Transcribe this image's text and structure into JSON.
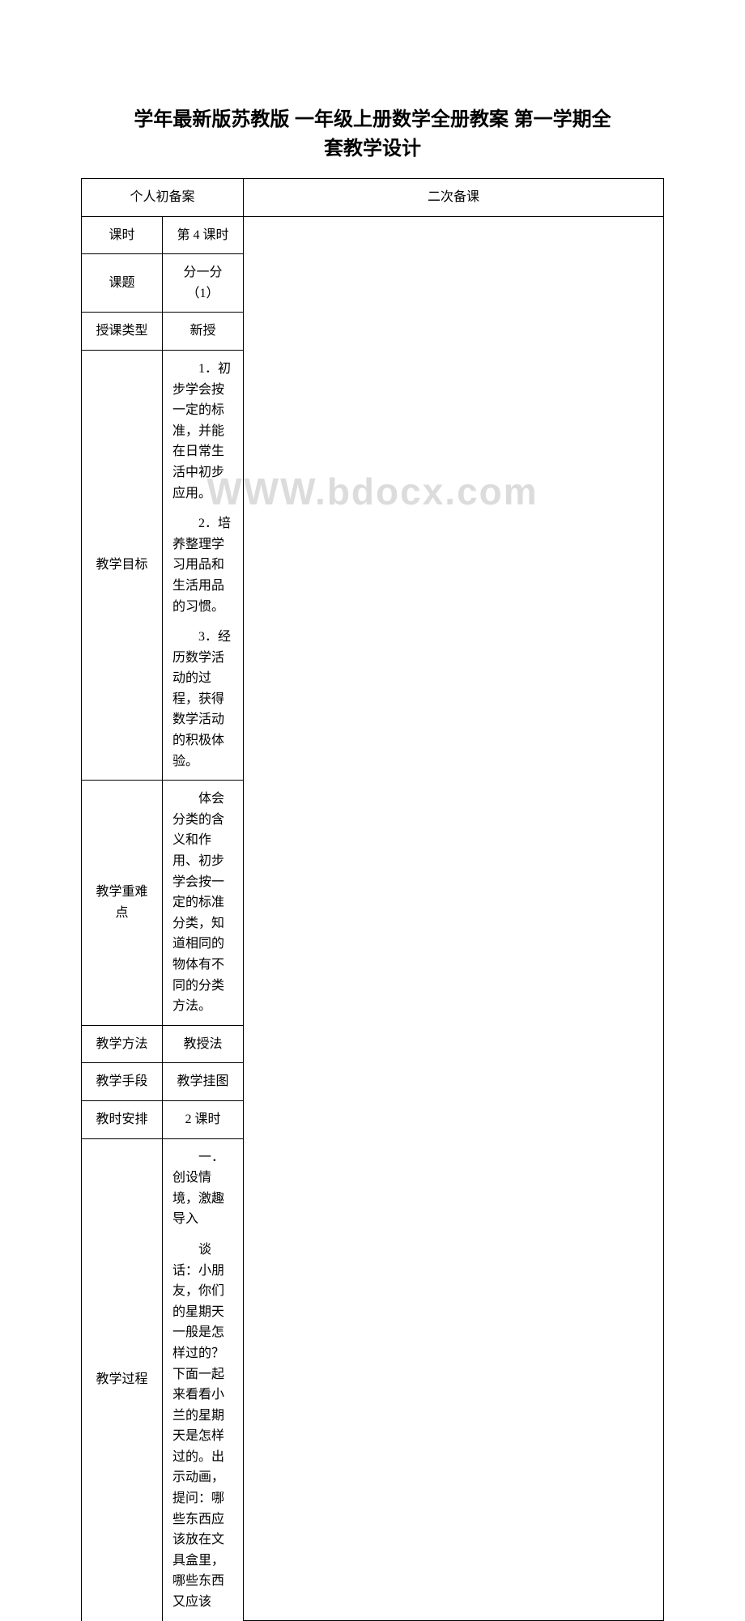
{
  "watermark": "WWW.bdocx.com",
  "title_line1": "学年最新版苏教版 一年级上册数学全册教案 第一学期全",
  "title_line2": "套教学设计",
  "header_plan": "个人初备案",
  "header_notes": "二次备课",
  "rows": {
    "period_label": "课时",
    "period_value": "第 4 课时",
    "topic_label": "课题",
    "topic_value": "分一分（1）",
    "type_label": "授课类型",
    "type_value": "新授",
    "objectives_label": "教学目标",
    "objectives_1": "1．初步学会按一定的标准，并能在日常生活中初步应用。",
    "objectives_2": "2．培养整理学习用品和生活用品的习惯。",
    "objectives_3": "3．经历数学活动的过程，获得数学活动的积极体验。",
    "difficulty_label": "教学重难点",
    "difficulty_value": "体会分类的含义和作用、初步学会按一定的标准分类，知道相同的物体有不同的分类方法。",
    "method_label": "教学方法",
    "method_value": "教授法",
    "means_label": "教学手段",
    "means_value": "教学挂图",
    "schedule_label": "教时安排",
    "schedule_value": "2 课时",
    "process_label": "教学过程",
    "process_1": "一．　创设情境，激趣导入",
    "process_2": "谈话：小朋友，你们的星期天一般是怎样过的？下面一起来看看小兰的星期天是怎样过的。出示动画，提问：哪些东西应该放在文具盒里，哪些东西又应该"
  },
  "colors": {
    "text": "#000000",
    "background": "#ffffff",
    "watermark": "#dcdcdc",
    "border": "#000000"
  },
  "fonts": {
    "title_family": "SimHei",
    "body_family": "SimSun",
    "title_size_pt": 18,
    "body_size_pt": 12
  }
}
